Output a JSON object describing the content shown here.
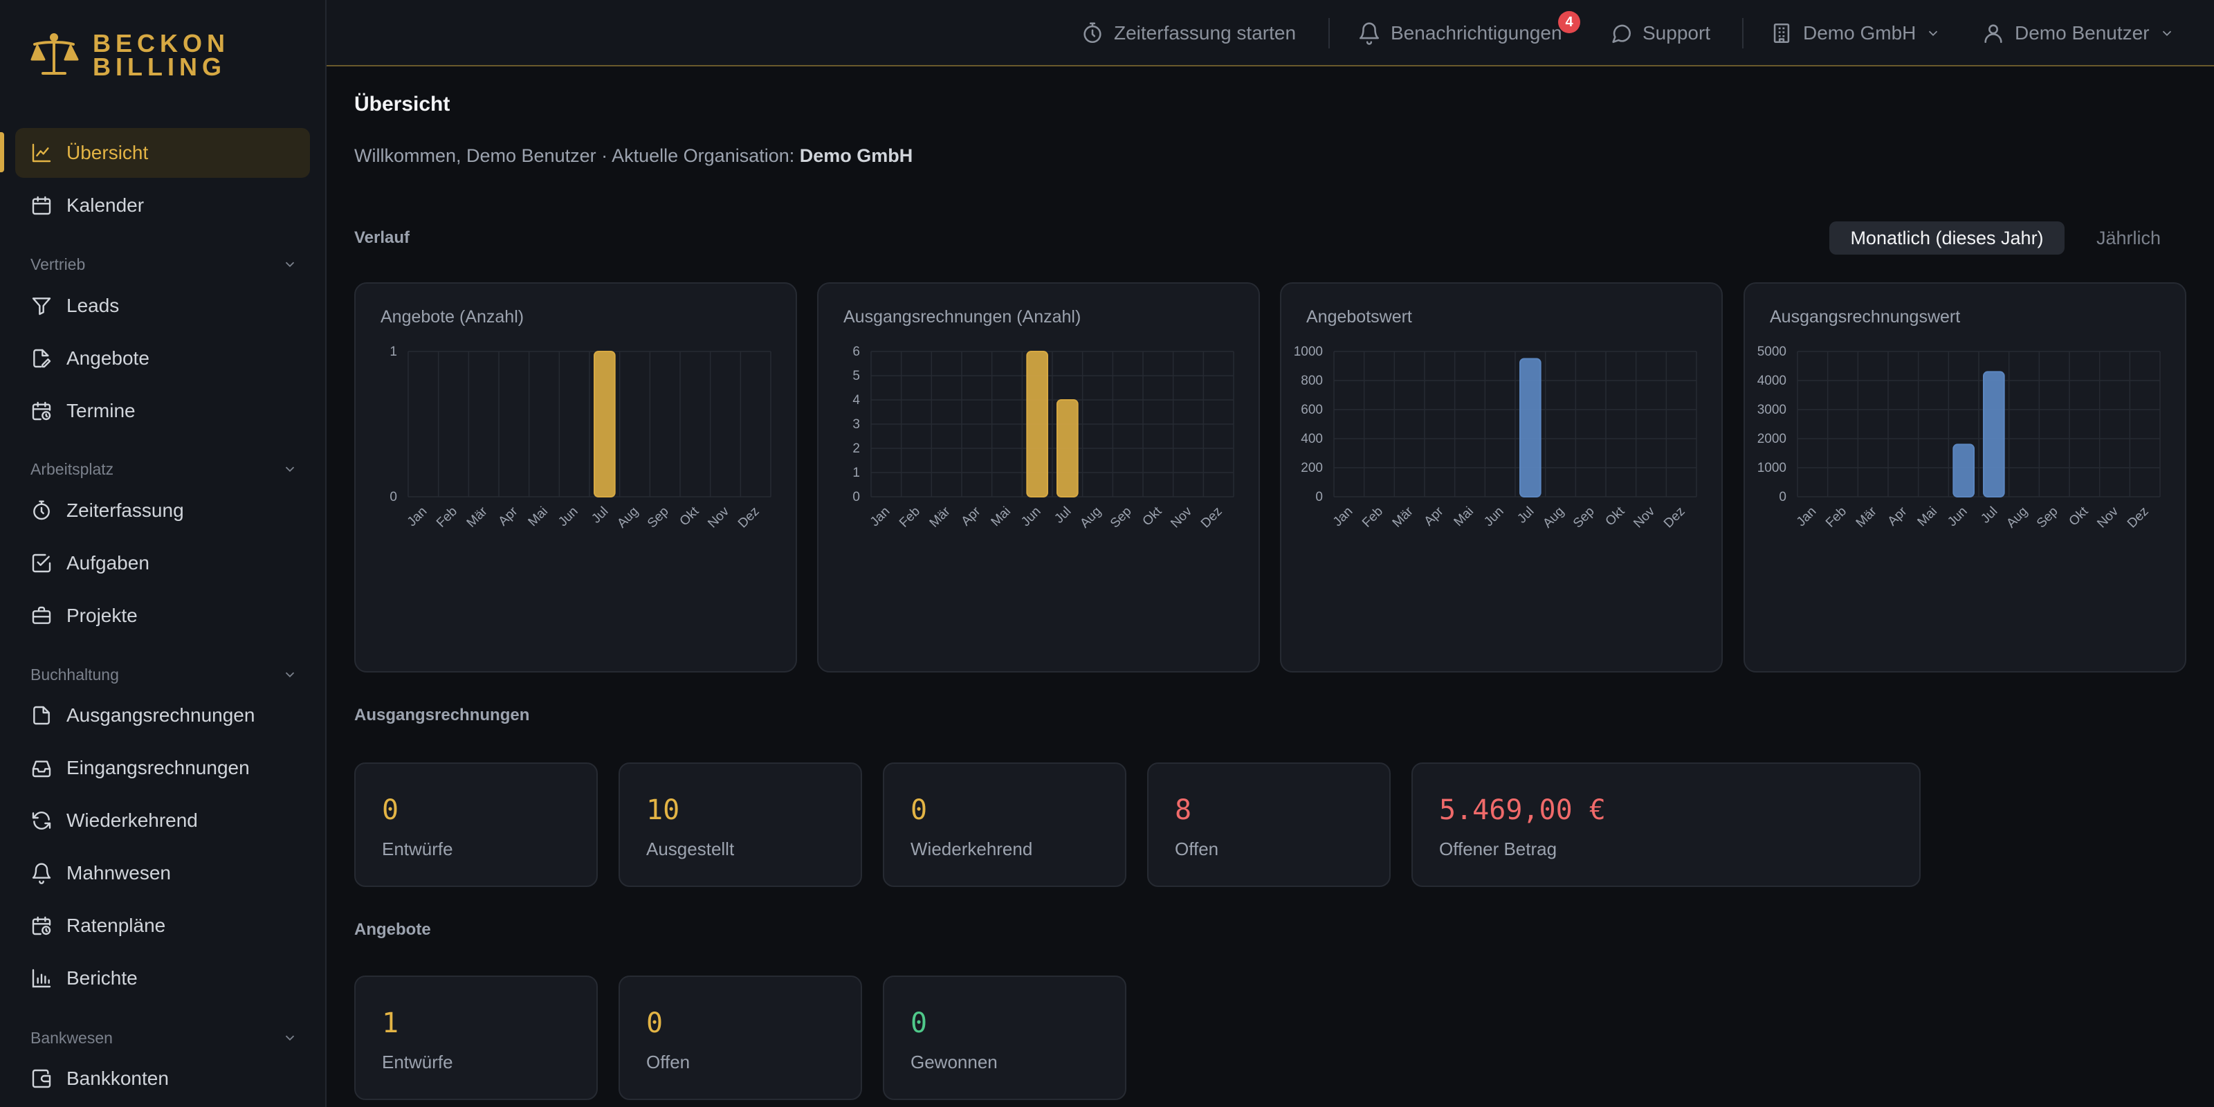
{
  "brand": {
    "line1": "BECKON",
    "line2": "BILLING",
    "color": "#d7a943"
  },
  "sidebar": {
    "items": [
      {
        "label": "Übersicht",
        "icon": "chart-line-icon",
        "active": true
      },
      {
        "label": "Kalender",
        "icon": "calendar-icon"
      },
      {
        "group": "Vertrieb"
      },
      {
        "label": "Leads",
        "icon": "filter-icon"
      },
      {
        "label": "Angebote",
        "icon": "file-edit-icon"
      },
      {
        "label": "Termine",
        "icon": "calendar-clock-icon"
      },
      {
        "group": "Arbeitsplatz"
      },
      {
        "label": "Zeiterfassung",
        "icon": "stopwatch-icon"
      },
      {
        "label": "Aufgaben",
        "icon": "checkbox-icon"
      },
      {
        "label": "Projekte",
        "icon": "briefcase-icon"
      },
      {
        "group": "Buchhaltung"
      },
      {
        "label": "Ausgangsrechnungen",
        "icon": "file-icon"
      },
      {
        "label": "Eingangsrechnungen",
        "icon": "inbox-icon"
      },
      {
        "label": "Wiederkehrend",
        "icon": "refresh-icon"
      },
      {
        "label": "Mahnwesen",
        "icon": "bell-icon"
      },
      {
        "label": "Ratenpläne",
        "icon": "calendar-clock-icon"
      },
      {
        "label": "Berichte",
        "icon": "bar-chart-icon"
      },
      {
        "group": "Bankwesen"
      },
      {
        "label": "Bankkonten",
        "icon": "wallet-icon"
      }
    ]
  },
  "header": {
    "timer": "Zeiterfassung starten",
    "notifications": "Benachrichtigungen",
    "notification_count": "4",
    "support": "Support",
    "organisation": "Demo GmbH",
    "user": "Demo Benutzer"
  },
  "main": {
    "title": "Übersicht",
    "welcome_prefix": "Willkommen, Demo Benutzer · Aktuelle Organisation:",
    "welcome_org": "Demo GmbH",
    "history_label": "Verlauf",
    "toggle_monthly": "Monatlich (dieses Jahr)",
    "toggle_yearly": "Jährlich",
    "invoices_label": "Ausgangsrechnungen",
    "offers_label": "Angebote",
    "invoice_stats": [
      {
        "value": "0",
        "label": "Entwürfe",
        "color": "#e3b445"
      },
      {
        "value": "10",
        "label": "Ausgestellt",
        "color": "#e3b445"
      },
      {
        "value": "0",
        "label": "Wiederkehrend",
        "color": "#e3b445"
      },
      {
        "value": "8",
        "label": "Offen",
        "color": "#f06a6a"
      },
      {
        "value": "5.469,00 €",
        "label": "Offener Betrag",
        "color": "#f06a6a"
      }
    ],
    "offer_stats": [
      {
        "value": "1",
        "label": "Entwürfe",
        "color": "#e3b445"
      },
      {
        "value": "0",
        "label": "Offen",
        "color": "#e3b445"
      },
      {
        "value": "0",
        "label": "Gewonnen",
        "color": "#4fc98a"
      }
    ]
  },
  "chart_data": [
    {
      "type": "bar",
      "title": "Angebote (Anzahl)",
      "categories": [
        "Jan",
        "Feb",
        "Mär",
        "Apr",
        "Mai",
        "Jun",
        "Jul",
        "Aug",
        "Sep",
        "Okt",
        "Nov",
        "Dez"
      ],
      "values": [
        0,
        0,
        0,
        0,
        0,
        0,
        1,
        0,
        0,
        0,
        0,
        0
      ],
      "ylim": [
        0,
        1
      ],
      "yticks": [
        0,
        1
      ],
      "color": "#d7a943",
      "grid": true
    },
    {
      "type": "bar",
      "title": "Ausgangsrechnungen (Anzahl)",
      "categories": [
        "Jan",
        "Feb",
        "Mär",
        "Apr",
        "Mai",
        "Jun",
        "Jul",
        "Aug",
        "Sep",
        "Okt",
        "Nov",
        "Dez"
      ],
      "values": [
        0,
        0,
        0,
        0,
        0,
        6,
        4,
        0,
        0,
        0,
        0,
        0
      ],
      "ylim": [
        0,
        6
      ],
      "yticks": [
        0,
        1,
        2,
        3,
        4,
        5,
        6
      ],
      "color": "#d7a943",
      "grid": true
    },
    {
      "type": "bar",
      "title": "Angebotswert",
      "categories": [
        "Jan",
        "Feb",
        "Mär",
        "Apr",
        "Mai",
        "Jun",
        "Jul",
        "Aug",
        "Sep",
        "Okt",
        "Nov",
        "Dez"
      ],
      "values": [
        0,
        0,
        0,
        0,
        0,
        0,
        950,
        0,
        0,
        0,
        0,
        0
      ],
      "ylim": [
        0,
        1000
      ],
      "yticks": [
        0,
        200,
        400,
        600,
        800,
        1000
      ],
      "color": "#5b86c0",
      "grid": true
    },
    {
      "type": "bar",
      "title": "Ausgangsrechnungswert",
      "categories": [
        "Jan",
        "Feb",
        "Mär",
        "Apr",
        "Mai",
        "Jun",
        "Jul",
        "Aug",
        "Sep",
        "Okt",
        "Nov",
        "Dez"
      ],
      "values": [
        0,
        0,
        0,
        0,
        0,
        1800,
        4300,
        0,
        0,
        0,
        0,
        0
      ],
      "ylim": [
        0,
        5000
      ],
      "yticks": [
        0,
        1000,
        2000,
        3000,
        4000,
        5000
      ],
      "color": "#5b86c0",
      "grid": true
    }
  ]
}
